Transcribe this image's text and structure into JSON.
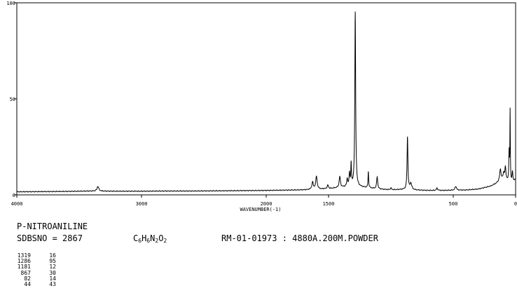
{
  "compound": "P-NITROANILINE",
  "sdbs": "SDBSNO = 2867",
  "formula": [
    {
      "t": "C",
      "s": "6"
    },
    {
      "t": "H",
      "s": "6"
    },
    {
      "t": "N",
      "s": "2"
    },
    {
      "t": "O",
      "s": "2"
    }
  ],
  "measurement": "RM-01-01973 : 4880A.200M.POWDER",
  "peaks": [
    {
      "wn": "1319",
      "i": "16"
    },
    {
      "wn": "1286",
      "i": "95"
    },
    {
      "wn": "1181",
      "i": "12"
    },
    {
      "wn": "867",
      "i": "30"
    },
    {
      "wn": "82",
      "i": "14"
    },
    {
      "wn": "44",
      "i": "43"
    }
  ],
  "chart_data": {
    "type": "line",
    "xlabel": "WAVENUMBER(-1)",
    "ylabel": "",
    "xlim": [
      4000,
      0
    ],
    "ylim": [
      0,
      100
    ],
    "xticks": [
      4000,
      3000,
      2000,
      1500,
      500,
      0
    ],
    "xtick_labels": [
      "4000",
      "3000",
      "2000",
      "1500",
      "500",
      "0"
    ],
    "yticks": [
      0,
      50,
      100
    ],
    "ytick_labels": [
      "0",
      "50",
      "100"
    ],
    "baseline": [
      [
        4000,
        1.6
      ],
      [
        3800,
        1.7
      ],
      [
        3600,
        1.8
      ],
      [
        3400,
        2.0
      ],
      [
        3200,
        1.9
      ],
      [
        3000,
        1.9
      ],
      [
        2800,
        2.0
      ],
      [
        2600,
        2.0
      ],
      [
        2400,
        2.1
      ],
      [
        2200,
        2.2
      ],
      [
        2000,
        2.3
      ],
      [
        1900,
        2.4
      ],
      [
        1800,
        2.5
      ],
      [
        1700,
        2.6
      ],
      [
        1620,
        2.8
      ],
      [
        1560,
        3.0
      ],
      [
        1480,
        3.3
      ],
      [
        1440,
        3.6
      ],
      [
        1380,
        4.0
      ],
      [
        1300,
        4.5
      ],
      [
        1200,
        3.8
      ],
      [
        1100,
        3.0
      ],
      [
        1000,
        2.6
      ],
      [
        900,
        2.8
      ],
      [
        800,
        2.5
      ],
      [
        700,
        2.3
      ],
      [
        600,
        2.3
      ],
      [
        500,
        2.4
      ],
      [
        400,
        2.5
      ],
      [
        300,
        3.0
      ],
      [
        200,
        4.5
      ],
      [
        150,
        6.0
      ],
      [
        100,
        8.0
      ],
      [
        60,
        7.0
      ],
      [
        30,
        6.0
      ],
      [
        0,
        8.0
      ]
    ],
    "peaks": [
      {
        "x": 3350,
        "y": 4.5,
        "w": 8
      },
      {
        "x": 1628,
        "y": 6.5,
        "w": 7
      },
      {
        "x": 1597,
        "y": 9.5,
        "w": 7
      },
      {
        "x": 1506,
        "y": 5.0,
        "w": 6
      },
      {
        "x": 1410,
        "y": 9.5,
        "w": 6
      },
      {
        "x": 1350,
        "y": 8.0,
        "w": 5
      },
      {
        "x": 1332,
        "y": 11.0,
        "w": 4
      },
      {
        "x": 1319,
        "y": 16.0,
        "w": 3
      },
      {
        "x": 1286,
        "y": 95.0,
        "w": 4
      },
      {
        "x": 1181,
        "y": 12.0,
        "w": 3
      },
      {
        "x": 1110,
        "y": 9.5,
        "w": 5
      },
      {
        "x": 1000,
        "y": 3.5,
        "w": 6
      },
      {
        "x": 867,
        "y": 30.0,
        "w": 4
      },
      {
        "x": 840,
        "y": 6.0,
        "w": 8
      },
      {
        "x": 630,
        "y": 3.5,
        "w": 6
      },
      {
        "x": 480,
        "y": 4.5,
        "w": 7
      },
      {
        "x": 122,
        "y": 13.0,
        "w": 7
      },
      {
        "x": 95,
        "y": 11.0,
        "w": 6
      },
      {
        "x": 82,
        "y": 14.0,
        "w": 5
      },
      {
        "x": 52,
        "y": 22.0,
        "w": 3
      },
      {
        "x": 44,
        "y": 43.0,
        "w": 2
      },
      {
        "x": 25,
        "y": 12.0,
        "w": 4
      }
    ]
  }
}
